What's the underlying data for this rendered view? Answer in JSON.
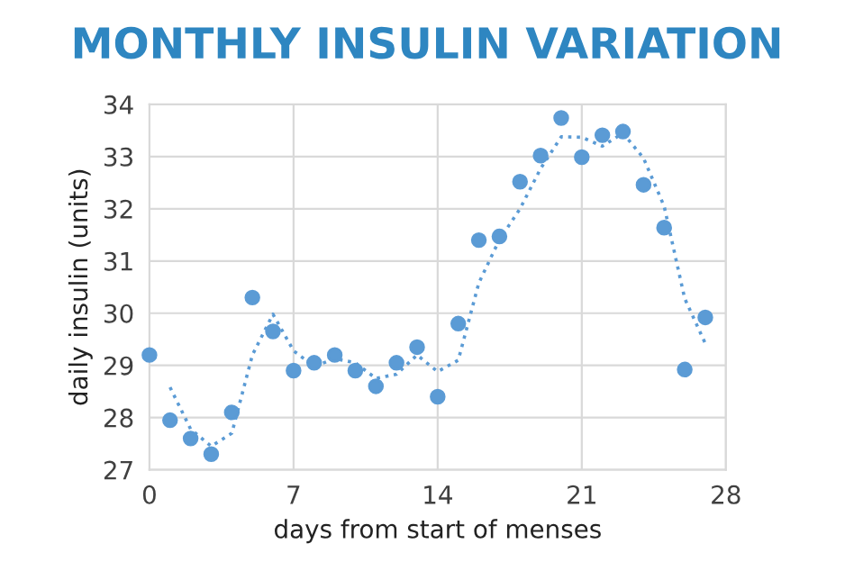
{
  "chart_data": {
    "type": "scatter",
    "title": "MONTHLY INSULIN VARIATION",
    "xlabel": "days from start of menses",
    "ylabel": "daily insulin (units)",
    "series": [
      {
        "color": "#5b9bd5",
        "marker": "circle",
        "x": [
          0,
          1,
          2,
          3,
          4,
          5,
          6,
          7,
          8,
          9,
          10,
          11,
          12,
          13,
          14,
          15,
          16,
          17,
          18,
          19,
          20,
          21,
          22,
          23,
          24,
          25,
          26,
          27
        ],
        "values": [
          29.2,
          27.95,
          27.6,
          27.3,
          28.1,
          30.3,
          29.65,
          28.9,
          29.05,
          29.2,
          28.9,
          28.6,
          29.05,
          29.35,
          28.4,
          29.8,
          31.4,
          31.47,
          32.52,
          33.02,
          33.74,
          32.99,
          33.41,
          33.48,
          32.46,
          31.64,
          28.92,
          29.92
        ]
      },
      {
        "type": "line",
        "color": "#5b9bd5",
        "line_style": "dotted",
        "x": [
          1,
          2,
          3,
          4,
          5,
          6,
          7,
          8,
          9,
          10,
          11,
          12,
          13,
          14,
          15,
          16,
          17,
          18,
          19,
          20,
          21,
          22,
          23,
          24,
          25,
          26,
          27
        ],
        "values": [
          28.58,
          27.78,
          27.45,
          27.7,
          29.2,
          29.98,
          29.28,
          28.98,
          29.13,
          29.05,
          28.75,
          28.83,
          29.2,
          28.88,
          29.1,
          30.58,
          31.41,
          32.0,
          32.77,
          33.38,
          33.37,
          33.2,
          33.45,
          32.97,
          32.05,
          30.28,
          29.42
        ]
      }
    ],
    "xlim": [
      0,
      28
    ],
    "ylim": [
      27,
      34
    ],
    "xticks": [
      0,
      7,
      14,
      21,
      28
    ],
    "yticks": [
      27,
      28,
      29,
      30,
      31,
      32,
      33,
      34
    ],
    "grid": true
  }
}
